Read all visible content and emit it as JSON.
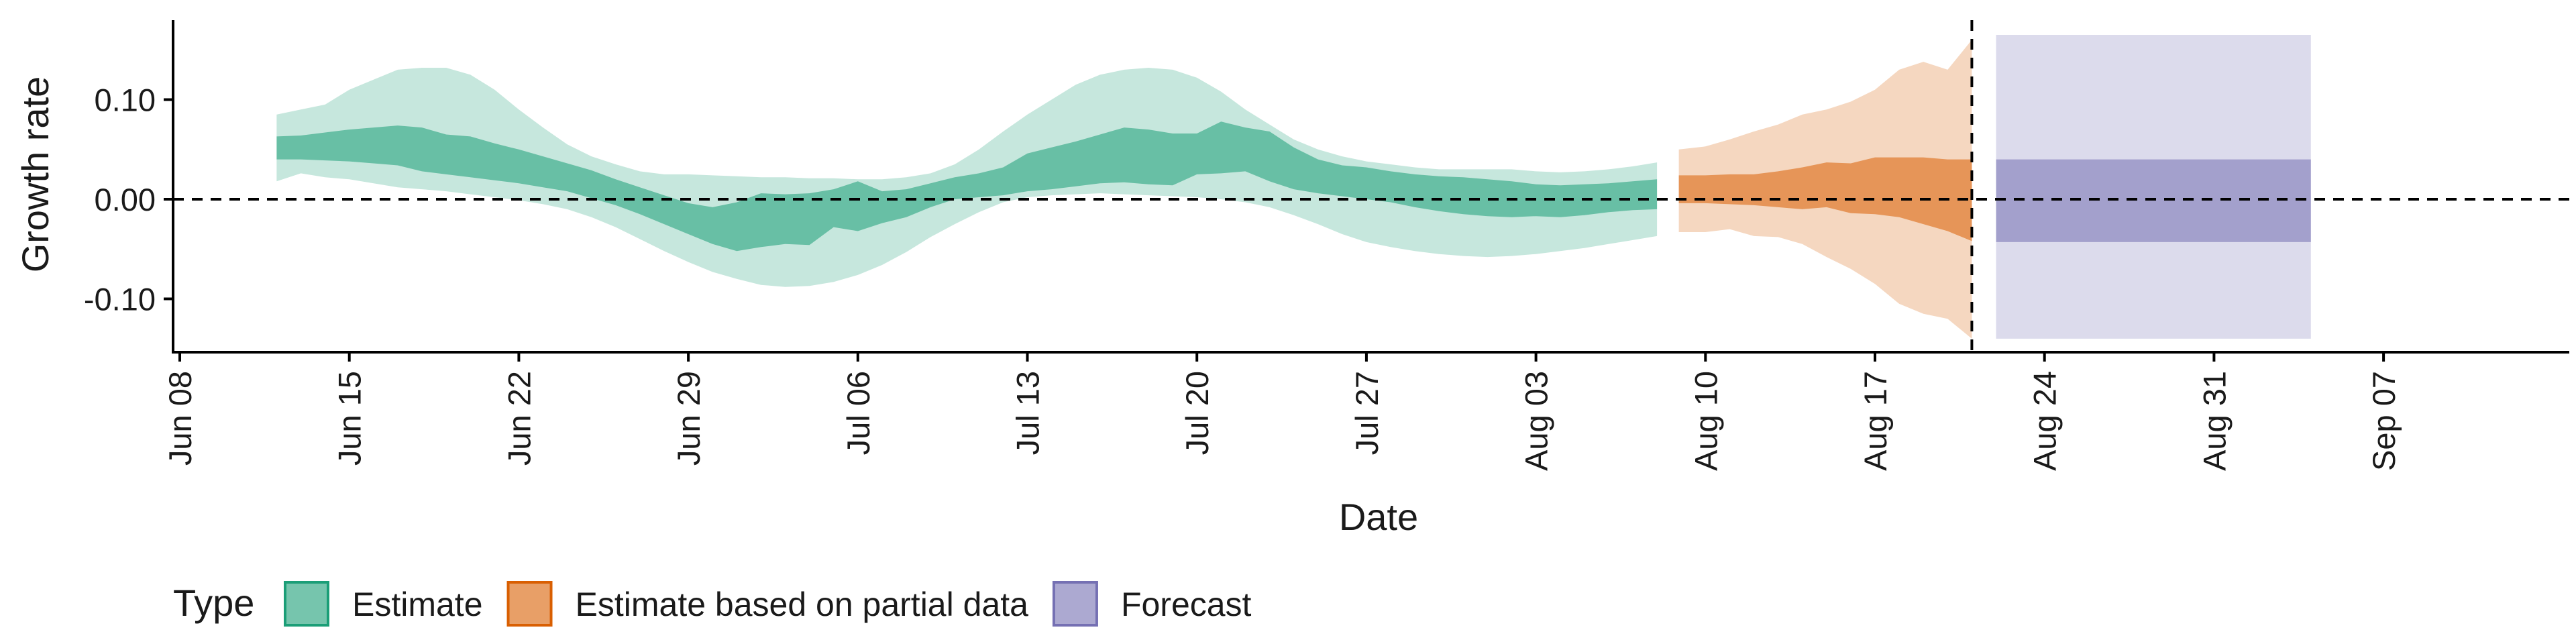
{
  "chart_data": {
    "type": "area",
    "title": "",
    "xlabel": "Date",
    "ylabel": "Growth rate",
    "x_start_date": "2020-06-08",
    "x_range_days": [
      0,
      91
    ],
    "ylim": [
      -0.15,
      0.18
    ],
    "y_ticks": [
      -0.1,
      0.0,
      0.1
    ],
    "y_tick_labels": [
      "-0.10",
      "0.00",
      "0.10"
    ],
    "x_ticks": [
      0,
      7,
      14,
      21,
      28,
      35,
      42,
      49,
      56,
      63,
      70,
      77,
      84,
      91
    ],
    "x_tick_labels": [
      "Jun 08",
      "Jun 15",
      "Jun 22",
      "Jun 29",
      "Jul 06",
      "Jul 13",
      "Jul 20",
      "Jul 27",
      "Aug 03",
      "Aug 10",
      "Aug 17",
      "Aug 24",
      "Aug 31",
      "Sep 07"
    ],
    "reference_line_y": 0,
    "cutoff_day": 74,
    "colors": {
      "estimate": "#1b9e77",
      "partial": "#d95f02",
      "forecast": "#7570b3",
      "axis": "#000000"
    },
    "legend": {
      "title": "Type",
      "position": "bottom-left",
      "entries": [
        {
          "key": "estimate",
          "label": "Estimate"
        },
        {
          "key": "partial",
          "label": "Estimate based on partial data"
        },
        {
          "key": "forecast",
          "label": "Forecast"
        }
      ]
    },
    "series": [
      {
        "name": "Estimate",
        "key": "estimate",
        "x": [
          4,
          5,
          6,
          7,
          8,
          9,
          10,
          11,
          12,
          13,
          14,
          15,
          16,
          17,
          18,
          19,
          20,
          21,
          22,
          23,
          24,
          25,
          26,
          27,
          28,
          29,
          30,
          31,
          32,
          33,
          34,
          35,
          36,
          37,
          38,
          39,
          40,
          41,
          42,
          43,
          44,
          45,
          46,
          47,
          48,
          49,
          50,
          51,
          52,
          53,
          54,
          55,
          56,
          57,
          58,
          59,
          60,
          61
        ],
        "upper90": [
          0.085,
          0.09,
          0.095,
          0.11,
          0.12,
          0.13,
          0.132,
          0.132,
          0.125,
          0.11,
          0.09,
          0.072,
          0.055,
          0.043,
          0.035,
          0.028,
          0.025,
          0.025,
          0.024,
          0.023,
          0.022,
          0.022,
          0.021,
          0.021,
          0.02,
          0.02,
          0.022,
          0.026,
          0.035,
          0.05,
          0.068,
          0.085,
          0.1,
          0.115,
          0.125,
          0.13,
          0.132,
          0.13,
          0.122,
          0.108,
          0.09,
          0.075,
          0.06,
          0.05,
          0.043,
          0.038,
          0.035,
          0.032,
          0.03,
          0.03,
          0.03,
          0.03,
          0.028,
          0.027,
          0.028,
          0.03,
          0.033,
          0.037
        ],
        "upper50": [
          0.063,
          0.064,
          0.067,
          0.07,
          0.072,
          0.074,
          0.072,
          0.065,
          0.063,
          0.056,
          0.05,
          0.043,
          0.036,
          0.029,
          0.02,
          0.012,
          0.004,
          -0.004,
          -0.008,
          -0.003,
          0.006,
          0.005,
          0.006,
          0.01,
          0.018,
          0.008,
          0.01,
          0.016,
          0.022,
          0.026,
          0.032,
          0.046,
          0.052,
          0.058,
          0.065,
          0.072,
          0.07,
          0.066,
          0.066,
          0.078,
          0.072,
          0.068,
          0.052,
          0.04,
          0.034,
          0.032,
          0.028,
          0.025,
          0.023,
          0.022,
          0.02,
          0.018,
          0.015,
          0.014,
          0.015,
          0.016,
          0.018,
          0.02
        ],
        "lower50": [
          0.04,
          0.04,
          0.039,
          0.038,
          0.036,
          0.034,
          0.028,
          0.025,
          0.022,
          0.019,
          0.016,
          0.012,
          0.008,
          0.001,
          -0.006,
          -0.015,
          -0.025,
          -0.035,
          -0.045,
          -0.052,
          -0.048,
          -0.045,
          -0.046,
          -0.028,
          -0.032,
          -0.024,
          -0.018,
          -0.008,
          0.0,
          0.002,
          0.004,
          0.008,
          0.01,
          0.013,
          0.016,
          0.017,
          0.015,
          0.014,
          0.025,
          0.026,
          0.028,
          0.018,
          0.01,
          0.006,
          0.003,
          0.0,
          -0.003,
          -0.008,
          -0.012,
          -0.015,
          -0.017,
          -0.018,
          -0.017,
          -0.018,
          -0.016,
          -0.013,
          -0.011,
          -0.01
        ],
        "lower90": [
          0.018,
          0.026,
          0.022,
          0.02,
          0.016,
          0.012,
          0.01,
          0.008,
          0.005,
          0.002,
          -0.001,
          -0.005,
          -0.01,
          -0.018,
          -0.028,
          -0.04,
          -0.052,
          -0.063,
          -0.073,
          -0.08,
          -0.086,
          -0.088,
          -0.087,
          -0.083,
          -0.076,
          -0.066,
          -0.053,
          -0.038,
          -0.025,
          -0.013,
          -0.003,
          0.002,
          0.004,
          0.005,
          0.006,
          0.005,
          0.004,
          0.003,
          0.002,
          0.0,
          -0.003,
          -0.008,
          -0.016,
          -0.025,
          -0.035,
          -0.043,
          -0.048,
          -0.052,
          -0.055,
          -0.057,
          -0.058,
          -0.057,
          -0.055,
          -0.052,
          -0.049,
          -0.045,
          -0.041,
          -0.037
        ]
      },
      {
        "name": "Estimate based on partial data",
        "key": "partial",
        "x": [
          61.9,
          63,
          64,
          65,
          66,
          67,
          68,
          69,
          70,
          71,
          72,
          73,
          74
        ],
        "upper90": [
          0.05,
          0.053,
          0.06,
          0.068,
          0.075,
          0.085,
          0.09,
          0.098,
          0.11,
          0.13,
          0.138,
          0.13,
          0.16
        ],
        "upper50": [
          0.024,
          0.024,
          0.025,
          0.025,
          0.028,
          0.032,
          0.037,
          0.036,
          0.042,
          0.042,
          0.042,
          0.04,
          0.04
        ],
        "lower50": [
          -0.004,
          -0.004,
          -0.005,
          -0.006,
          -0.008,
          -0.01,
          -0.008,
          -0.014,
          -0.015,
          -0.018,
          -0.025,
          -0.032,
          -0.042
        ],
        "lower90": [
          -0.033,
          -0.033,
          -0.03,
          -0.037,
          -0.038,
          -0.045,
          -0.058,
          -0.07,
          -0.085,
          -0.105,
          -0.115,
          -0.12,
          -0.14
        ]
      },
      {
        "name": "Forecast",
        "key": "forecast",
        "x": [
          75,
          88
        ],
        "upper90": [
          0.165,
          0.165
        ],
        "upper50": [
          0.04,
          0.04
        ],
        "lower50": [
          -0.043,
          -0.043
        ],
        "lower90": [
          -0.14,
          -0.14
        ]
      }
    ]
  }
}
